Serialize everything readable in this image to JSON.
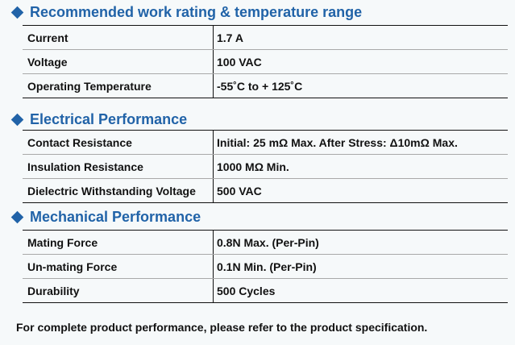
{
  "sections": [
    {
      "title": "Recommended work rating & temperature range",
      "rows": [
        {
          "label": "Current",
          "value": "1.7 A"
        },
        {
          "label": "Voltage",
          "value": "100 VAC"
        },
        {
          "label": "Operating Temperature",
          "value": "-55˚C to + 125˚C"
        }
      ]
    },
    {
      "title": "Electrical Performance",
      "rows": [
        {
          "label": "Contact Resistance",
          "value": "Initial: 25 mΩ Max.  After Stress: Δ10mΩ Max."
        },
        {
          "label": "Insulation Resistance",
          "value": "1000 MΩ Min."
        },
        {
          "label": "Dielectric Withstanding Voltage",
          "value": "500 VAC"
        }
      ]
    },
    {
      "title": "Mechanical Performance",
      "rows": [
        {
          "label": "Mating Force",
          "value": "0.8N Max. (Per-Pin)"
        },
        {
          "label": "Un-mating Force",
          "value": "0.1N Min. (Per-Pin)"
        },
        {
          "label": "Durability",
          "value": "500 Cycles"
        }
      ]
    }
  ],
  "footnote": "For complete product performance, please refer to the product specification.",
  "colors": {
    "heading": "#2163a8",
    "text": "#111111",
    "background": "#f6f9fa"
  },
  "icons": {
    "bullet": "diamond-icon"
  }
}
